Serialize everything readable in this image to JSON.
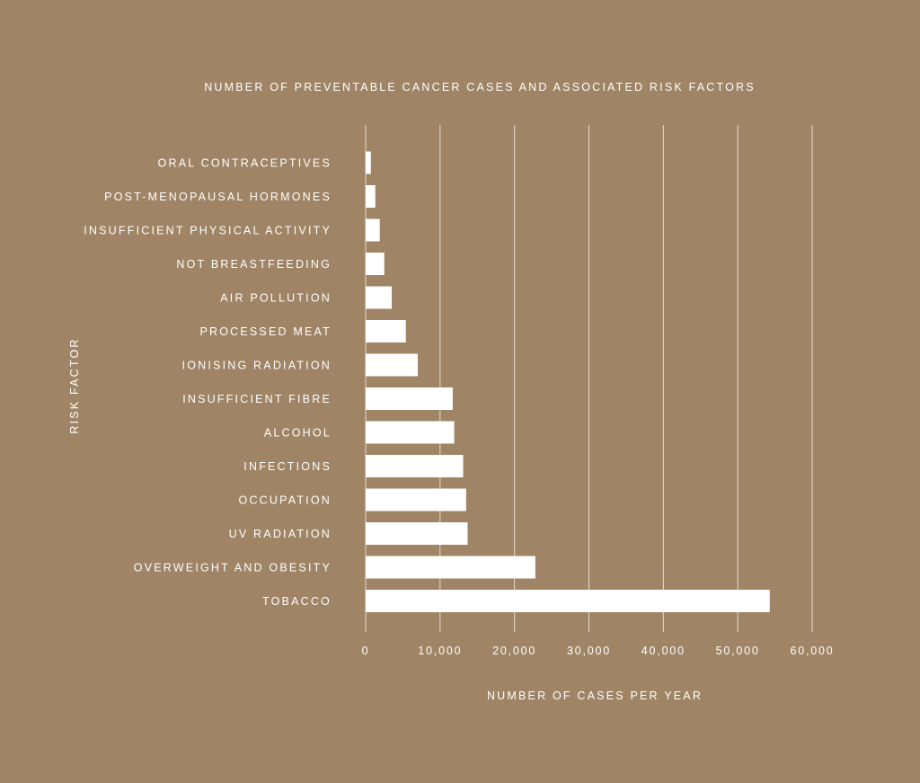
{
  "colors": {
    "background": "#9f8465",
    "bar": "#ffffff",
    "text": "#ffffff",
    "grid": "#e6dccf"
  },
  "chart_data": {
    "type": "bar",
    "orientation": "horizontal",
    "title": "NUMBER OF PREVENTABLE CANCER CASES AND ASSOCIATED RISK FACTORS",
    "xlabel": "NUMBER OF CASES PER YEAR",
    "ylabel": "RISK FACTOR",
    "xlim": [
      0,
      60000
    ],
    "xticks": [
      0,
      10000,
      20000,
      30000,
      40000,
      50000,
      60000
    ],
    "xtick_labels": [
      "0",
      "10,000",
      "20,000",
      "30,000",
      "40,000",
      "50,000",
      "60,000"
    ],
    "grid": "vertical",
    "categories": [
      "ORAL CONTRACEPTIVES",
      "POST-MENOPAUSAL HORMONES",
      "INSUFFICIENT PHYSICAL ACTIVITY",
      "NOT BREASTFEEDING",
      "AIR POLLUTION",
      "PROCESSED MEAT",
      "IONISING RADIATION",
      "INSUFFICIENT FIBRE",
      "ALCOHOL",
      "INFECTIONS",
      "OCCUPATION",
      "UV RADIATION",
      "OVERWEIGHT AND OBESITY",
      "TOBACCO"
    ],
    "values": [
      700,
      1300,
      1900,
      2500,
      3500,
      5400,
      7000,
      11700,
      11900,
      13100,
      13500,
      13700,
      22800,
      54300
    ]
  }
}
